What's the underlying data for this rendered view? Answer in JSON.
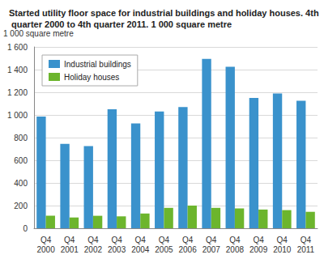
{
  "chart_data": {
    "type": "bar",
    "title": "Started utility floor space for industrial buildings and holiday houses. 4th quarter 2000 to 4th quarter 2011. 1 000 square metre",
    "y_label": "1 000 square metre",
    "categories": [
      "Q4\n2000",
      "Q4\n2001",
      "Q4\n2002",
      "Q4\n2003",
      "Q4\n2004",
      "Q4\n2005",
      "Q4\n2006",
      "Q4\n2007",
      "Q4\n2008",
      "Q4\n2009",
      "Q4\n2010",
      "Q4\n2011"
    ],
    "series": [
      {
        "name": "Industrial buildings",
        "color": "#3a92cc",
        "values": [
          985,
          745,
          725,
          1050,
          925,
          1030,
          1070,
          1495,
          1425,
          1150,
          1190,
          1125
        ]
      },
      {
        "name": "Holiday houses",
        "color": "#6cb52d",
        "values": [
          110,
          95,
          110,
          105,
          130,
          180,
          200,
          180,
          175,
          165,
          160,
          145
        ]
      }
    ],
    "ylim": [
      0,
      1600
    ],
    "yticks": [
      0,
      200,
      400,
      600,
      800,
      {
        "value": 1000,
        "label": "1 000"
      },
      {
        "value": 1200,
        "label": "1 200"
      },
      {
        "value": 1400,
        "label": "1 400"
      },
      {
        "value": 1600,
        "label": "1 600"
      }
    ],
    "grid": true,
    "legend": "top-left"
  }
}
